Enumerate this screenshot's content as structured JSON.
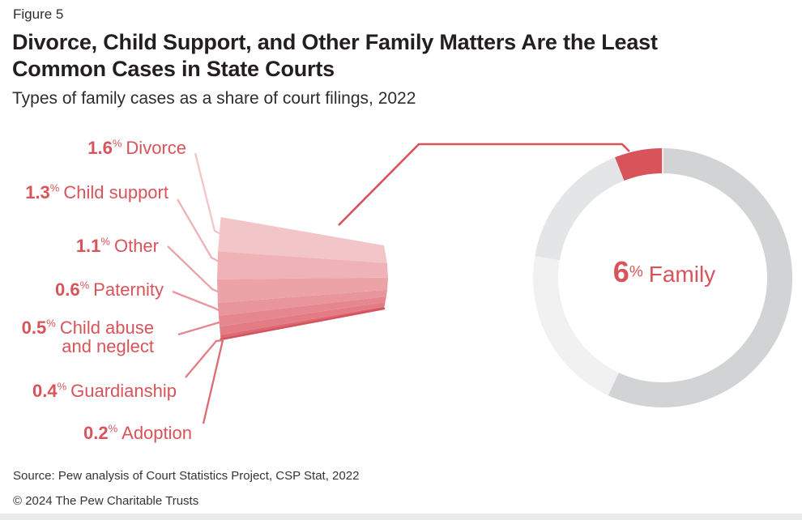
{
  "figure_label": "Figure 5",
  "title": "Divorce, Child Support, and Other Family Matters Are the Least Common Cases in State Courts",
  "subtitle": "Types of family cases as a share of court filings, 2022",
  "source": "Source: Pew analysis of Court Statistics Project, CSP Stat, 2022",
  "copyright": "© 2024 The Pew Charitable Trusts",
  "percent_sign": "%",
  "accent_color": "#d8535a",
  "chart_data": {
    "type": "pie",
    "subtype": "donut-with-breakout-fan",
    "title": "Types of family cases as a share of court filings, 2022",
    "donut": {
      "center_label": {
        "value": 6,
        "unit": "%",
        "label": "Family"
      },
      "segments_clockwise_from_top": [
        {
          "name": "other-cases-gray",
          "share": 56.9,
          "color": "#d2d3d4",
          "label": ""
        },
        {
          "name": "other-cases-lightest-gray",
          "share": 20.8,
          "color": "#f1f1f2",
          "label": ""
        },
        {
          "name": "other-cases-light-gray",
          "share": 16.3,
          "color": "#e4e5e6",
          "label": ""
        },
        {
          "name": "family",
          "share": 6,
          "color": "#d8535a",
          "label": "Family"
        }
      ],
      "legend_position": "center",
      "grid": false
    },
    "breakout": {
      "description": "Family 6% expanded into stacked fan, top to bottom",
      "unit": "%",
      "items": [
        {
          "label": "Divorce",
          "value": 1.6,
          "color": "#f2c5c8"
        },
        {
          "label": "Child support",
          "value": 1.3,
          "color": "#efb2b6"
        },
        {
          "label": "Other",
          "value": 1.1,
          "color": "#eca3a8"
        },
        {
          "label": "Paternity",
          "value": 0.6,
          "color": "#e9959c"
        },
        {
          "label": "Child abuse and neglect",
          "value": 0.5,
          "color": "#e6878f"
        },
        {
          "label": "Guardianship",
          "value": 0.4,
          "color": "#e37c84"
        },
        {
          "label": "Adoption",
          "value": 0.2,
          "color": "#dd6a73"
        }
      ]
    }
  }
}
